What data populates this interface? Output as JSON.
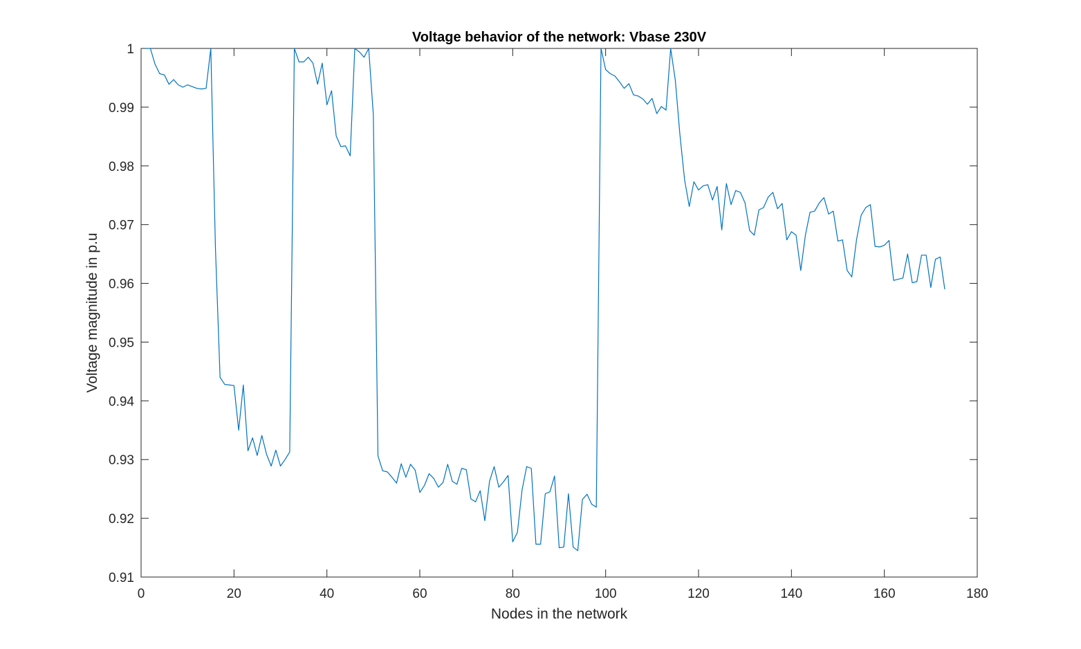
{
  "chart_data": {
    "type": "line",
    "title": "Voltage behavior of the network: Vbase 230V",
    "xlabel": "Nodes in the network",
    "ylabel": "Voltage magnitude in p.u",
    "xlim": [
      0,
      180
    ],
    "ylim": [
      0.91,
      1.0
    ],
    "xticks": [
      0,
      20,
      40,
      60,
      80,
      100,
      120,
      140,
      160,
      180
    ],
    "xtick_labels": [
      "0",
      "20",
      "40",
      "60",
      "80",
      "100",
      "120",
      "140",
      "160",
      "180"
    ],
    "yticks": [
      0.91,
      0.92,
      0.93,
      0.94,
      0.95,
      0.96,
      0.97,
      0.98,
      0.99,
      1.0
    ],
    "ytick_labels": [
      "0.91",
      "0.92",
      "0.93",
      "0.94",
      "0.95",
      "0.96",
      "0.97",
      "0.98",
      "0.99",
      "1"
    ],
    "grid": false,
    "legend": false,
    "line_color": "#0072BD",
    "series": [
      {
        "x": [
          1,
          2,
          3,
          4,
          5,
          6,
          7,
          8,
          9,
          10,
          11,
          12,
          13,
          14,
          15,
          16,
          17,
          18,
          19,
          20,
          21,
          22,
          23,
          24,
          25,
          26,
          27,
          28,
          29,
          30,
          31,
          32,
          33,
          34,
          35,
          36,
          37,
          38,
          39,
          40,
          41,
          42,
          43,
          44,
          45,
          46,
          47,
          48,
          49,
          50,
          51,
          52,
          53,
          54,
          55,
          56,
          57,
          58,
          59,
          60,
          61,
          62,
          63,
          64,
          65,
          66,
          67,
          68,
          69,
          70,
          71,
          72,
          73,
          74,
          75,
          76,
          77,
          78,
          79,
          80,
          81,
          82,
          83,
          84,
          85,
          86,
          87,
          88,
          89,
          90,
          91,
          92,
          93,
          94,
          95,
          96,
          97,
          98,
          99,
          100,
          101,
          102,
          103,
          104,
          105,
          106,
          107,
          108,
          109,
          110,
          111,
          112,
          113,
          114,
          115,
          116,
          117,
          118,
          119,
          120,
          121,
          122,
          123,
          124,
          125,
          126,
          127,
          128,
          129,
          130,
          131,
          132,
          133,
          134,
          135,
          136,
          137,
          138,
          139,
          140,
          141,
          142,
          143,
          144,
          145,
          146,
          147,
          148,
          149,
          150,
          151,
          152,
          153,
          154,
          155,
          156,
          157,
          158,
          159,
          160,
          161,
          162,
          163,
          164,
          165,
          166,
          167,
          168,
          169,
          170,
          171,
          172,
          173
        ],
        "y": [
          1.0,
          1.0,
          0.9973,
          0.9957,
          0.9955,
          0.9939,
          0.9947,
          0.9938,
          0.9934,
          0.9938,
          0.9935,
          0.9932,
          0.9931,
          0.9932,
          1.0,
          0.966,
          0.944,
          0.9428,
          0.9427,
          0.9426,
          0.935,
          0.9427,
          0.9315,
          0.9337,
          0.9307,
          0.9341,
          0.9309,
          0.9289,
          0.9316,
          0.9289,
          0.93,
          0.9313,
          1.0,
          0.9977,
          0.9977,
          0.9985,
          0.9975,
          0.9939,
          0.9975,
          0.9904,
          0.9928,
          0.9851,
          0.9833,
          0.9834,
          0.9817,
          1.0,
          0.9994,
          0.9985,
          1.0,
          0.9887,
          0.9306,
          0.9281,
          0.9279,
          0.927,
          0.926,
          0.9293,
          0.927,
          0.9292,
          0.9282,
          0.9244,
          0.9256,
          0.9276,
          0.9268,
          0.9253,
          0.9261,
          0.9292,
          0.9263,
          0.9258,
          0.9285,
          0.9283,
          0.9233,
          0.9228,
          0.9247,
          0.9196,
          0.9263,
          0.9288,
          0.9253,
          0.9262,
          0.9273,
          0.916,
          0.9176,
          0.9248,
          0.9288,
          0.9285,
          0.9156,
          0.9156,
          0.9242,
          0.9245,
          0.9272,
          0.915,
          0.9151,
          0.9242,
          0.9151,
          0.9145,
          0.9232,
          0.9241,
          0.9224,
          0.9219,
          1.0,
          0.9964,
          0.9957,
          0.9953,
          0.9943,
          0.9932,
          0.994,
          0.9921,
          0.9919,
          0.9914,
          0.9905,
          0.9915,
          0.9889,
          0.9901,
          0.9895,
          1.0,
          0.9946,
          0.9853,
          0.9776,
          0.9731,
          0.9773,
          0.9759,
          0.9766,
          0.9768,
          0.9742,
          0.9765,
          0.9691,
          0.977,
          0.9734,
          0.9758,
          0.9755,
          0.9737,
          0.969,
          0.9682,
          0.9725,
          0.9729,
          0.9747,
          0.9755,
          0.9727,
          0.9736,
          0.9674,
          0.9688,
          0.9682,
          0.9622,
          0.9682,
          0.9721,
          0.9723,
          0.9737,
          0.9746,
          0.9718,
          0.9723,
          0.9672,
          0.9674,
          0.9622,
          0.9611,
          0.9674,
          0.9716,
          0.9729,
          0.9734,
          0.9663,
          0.9662,
          0.9665,
          0.9673,
          0.9605,
          0.9607,
          0.9609,
          0.965,
          0.9601,
          0.9603,
          0.9648,
          0.9648,
          0.9593,
          0.9641,
          0.9645,
          0.959
        ]
      }
    ]
  }
}
